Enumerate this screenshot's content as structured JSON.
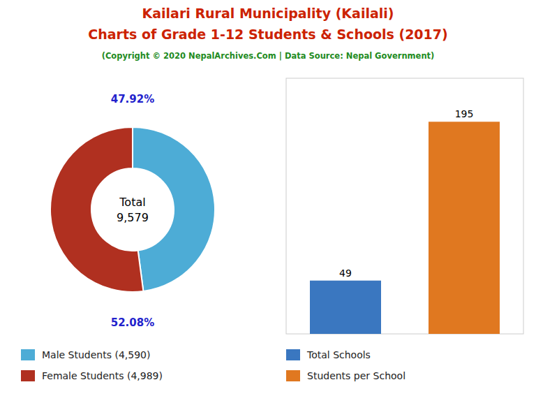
{
  "chart_data": [
    {
      "type": "donut",
      "title": [
        "Kailari Rural Municipality (Kailali)",
        "Charts of Grade 1-12 Students & Schools (2017)"
      ],
      "subtitle": "(Copyright © 2020 NepalArchives.Com | Data Source: Nepal Government)",
      "categories": [
        "Male Students (4,590)",
        "Female Students (4,989)"
      ],
      "values": [
        47.92,
        52.08
      ],
      "value_labels": [
        "47.92%",
        "52.08%"
      ],
      "colors": [
        "#4dacd6",
        "#b03020"
      ],
      "data_labels": true,
      "annotations": [
        "Total\n9,579"
      ],
      "legend": "bottom"
    },
    {
      "type": "bar",
      "categories": [
        "Total Schools",
        "Students per School"
      ],
      "values": [
        49,
        195
      ],
      "colors": [
        "#3a77c0",
        "#e07820"
      ],
      "ylim": [
        0,
        235
      ],
      "data_labels": true,
      "tick_labels": false,
      "legend": "bottom"
    }
  ]
}
